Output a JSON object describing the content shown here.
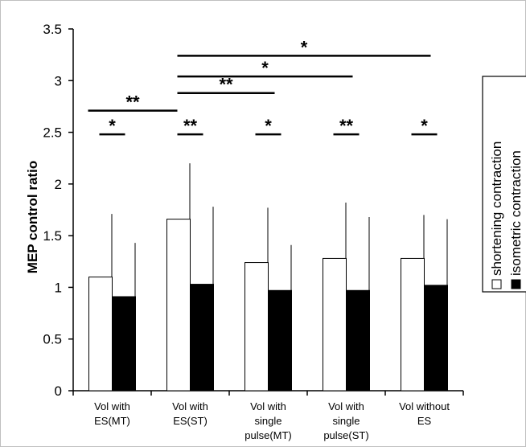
{
  "chart_data": {
    "type": "bar",
    "ylabel": "MEP control ratio",
    "ylim": [
      0,
      3.5
    ],
    "yticks": [
      "0",
      "0.5",
      "1",
      "1.5",
      "2",
      "2.5",
      "3",
      "3.5"
    ],
    "categories": [
      [
        "Vol with",
        "ES(MT)"
      ],
      [
        "Vol with",
        "ES(ST)"
      ],
      [
        "Vol with",
        "single",
        "pulse(MT)"
      ],
      [
        "Vol with",
        "single",
        "pulse(ST)"
      ],
      [
        "Vol without",
        "ES"
      ]
    ],
    "series": [
      {
        "name": "shortening contraction",
        "color": "#ffffff",
        "values": [
          1.1,
          1.66,
          1.24,
          1.28,
          1.28
        ],
        "errors": [
          0.61,
          0.54,
          0.53,
          0.54,
          0.42
        ]
      },
      {
        "name": "isometric contraction",
        "color": "#000000",
        "values": [
          0.91,
          1.03,
          0.97,
          0.97,
          1.02
        ],
        "errors": [
          0.52,
          0.75,
          0.44,
          0.71,
          0.64
        ]
      }
    ],
    "within_group_significance": [
      "*",
      "**",
      "*",
      "**",
      "*"
    ],
    "between_group_significance": [
      {
        "from": 0,
        "to": 1,
        "label": "**",
        "y": 2.71
      },
      {
        "from": 1,
        "to": 2,
        "label": "**",
        "y": 2.88
      },
      {
        "from": 1,
        "to": 3,
        "label": "*",
        "y": 3.04
      },
      {
        "from": 1,
        "to": 4,
        "label": "*",
        "y": 3.24
      }
    ],
    "legend_position": "right"
  }
}
